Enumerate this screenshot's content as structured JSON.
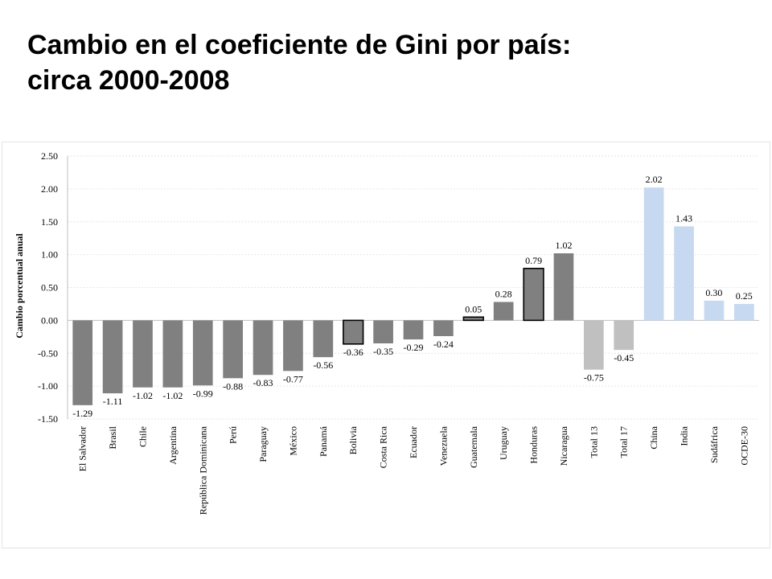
{
  "title_line1": "Cambio en el coeficiente de Gini por país:",
  "title_line2": "circa 2000-2008",
  "chart_data": {
    "type": "bar",
    "ylabel": "Cambio porcentual anual",
    "xlabel": "",
    "ylim": [
      -1.5,
      2.5
    ],
    "yticks": [
      "2.50",
      "2.00",
      "1.50",
      "1.00",
      "0.50",
      "0.00",
      "-0.50",
      "-1.00",
      "-1.50"
    ],
    "grid": true,
    "categories": [
      "El Salvador",
      "Brasil",
      "Chile",
      "Argentina",
      "República Dominicana",
      "Perú",
      "Paraguay",
      "México",
      "Panamá",
      "Bolivia",
      "Costa Rica",
      "Ecuador",
      "Venezuela",
      "Guatemala",
      "Uruguay",
      "Honduras",
      "Nicaragua",
      "Total 13",
      "Total 17",
      "China",
      "India",
      "Sudáfrica",
      "OCDE-30"
    ],
    "values": [
      -1.29,
      -1.11,
      -1.02,
      -1.02,
      -0.99,
      -0.88,
      -0.83,
      -0.77,
      -0.56,
      -0.36,
      -0.35,
      -0.29,
      -0.24,
      0.05,
      0.28,
      0.79,
      1.02,
      -0.75,
      -0.45,
      2.02,
      1.43,
      0.3,
      0.25
    ],
    "value_labels": [
      "-1.29",
      "-1.11",
      "-1.02",
      "-1.02",
      "-0.99",
      "-0.88",
      "-0.83",
      "-0.77",
      "-0.56",
      "-0.36",
      "-0.35",
      "-0.29",
      "-0.24",
      "0.05",
      "0.28",
      "0.79",
      "1.02",
      "-0.75",
      "-0.45",
      "2.02",
      "1.43",
      "0.30",
      "0.25"
    ],
    "bar_colors": [
      "#808080",
      "#808080",
      "#808080",
      "#808080",
      "#808080",
      "#808080",
      "#808080",
      "#808080",
      "#808080",
      "#808080",
      "#808080",
      "#808080",
      "#808080",
      "#808080",
      "#808080",
      "#808080",
      "#808080",
      "#c0c0c0",
      "#c0c0c0",
      "#c6d9f1",
      "#c6d9f1",
      "#c6d9f1",
      "#c6d9f1"
    ],
    "outlined": [
      "Bolivia",
      "Guatemala",
      "Honduras"
    ]
  }
}
